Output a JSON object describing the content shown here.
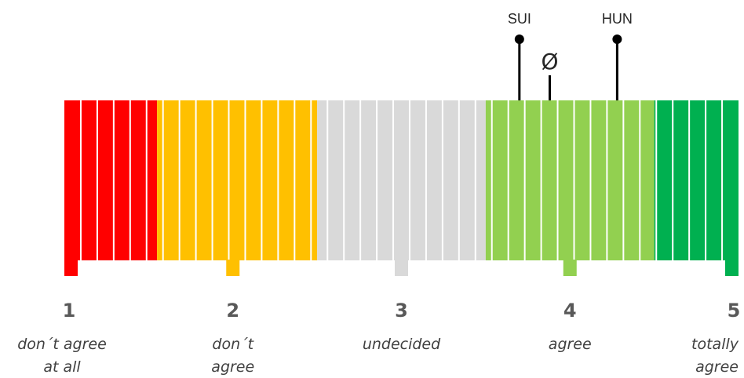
{
  "chart_data": {
    "type": "scale",
    "xlim": [
      1,
      5
    ],
    "colors": {
      "red": "#FF0000",
      "orange": "#FFC000",
      "grey": "#D9D9D9",
      "light_green": "#92D050",
      "green": "#00B050",
      "separator": "#FFFFFF",
      "marker": "#000000"
    },
    "segments": [
      {
        "from": 1.0,
        "to": 1.55,
        "color": "red"
      },
      {
        "from": 1.55,
        "to": 2.5,
        "color": "orange"
      },
      {
        "from": 2.5,
        "to": 3.5,
        "color": "grey"
      },
      {
        "from": 3.5,
        "to": 4.5,
        "color": "light_green"
      },
      {
        "from": 4.5,
        "to": 5.0,
        "color": "green"
      }
    ],
    "stripe_count": 41,
    "ticks": [
      {
        "value": 1,
        "number": "1",
        "label": [
          "don´t agree",
          "at all"
        ]
      },
      {
        "value": 2,
        "number": "2",
        "label": [
          "don´t",
          "agree"
        ]
      },
      {
        "value": 3,
        "number": "3",
        "label": [
          "undecided"
        ]
      },
      {
        "value": 4,
        "number": "4",
        "label": [
          "agree"
        ]
      },
      {
        "value": 5,
        "number": "5",
        "label": [
          "totally",
          "agree"
        ]
      }
    ],
    "markers": [
      {
        "label": "SUI",
        "value": 3.7,
        "dot": true
      },
      {
        "label": "Ø",
        "value": 3.88,
        "dot": false
      },
      {
        "label": "HUN",
        "value": 4.28,
        "dot": true
      }
    ]
  }
}
